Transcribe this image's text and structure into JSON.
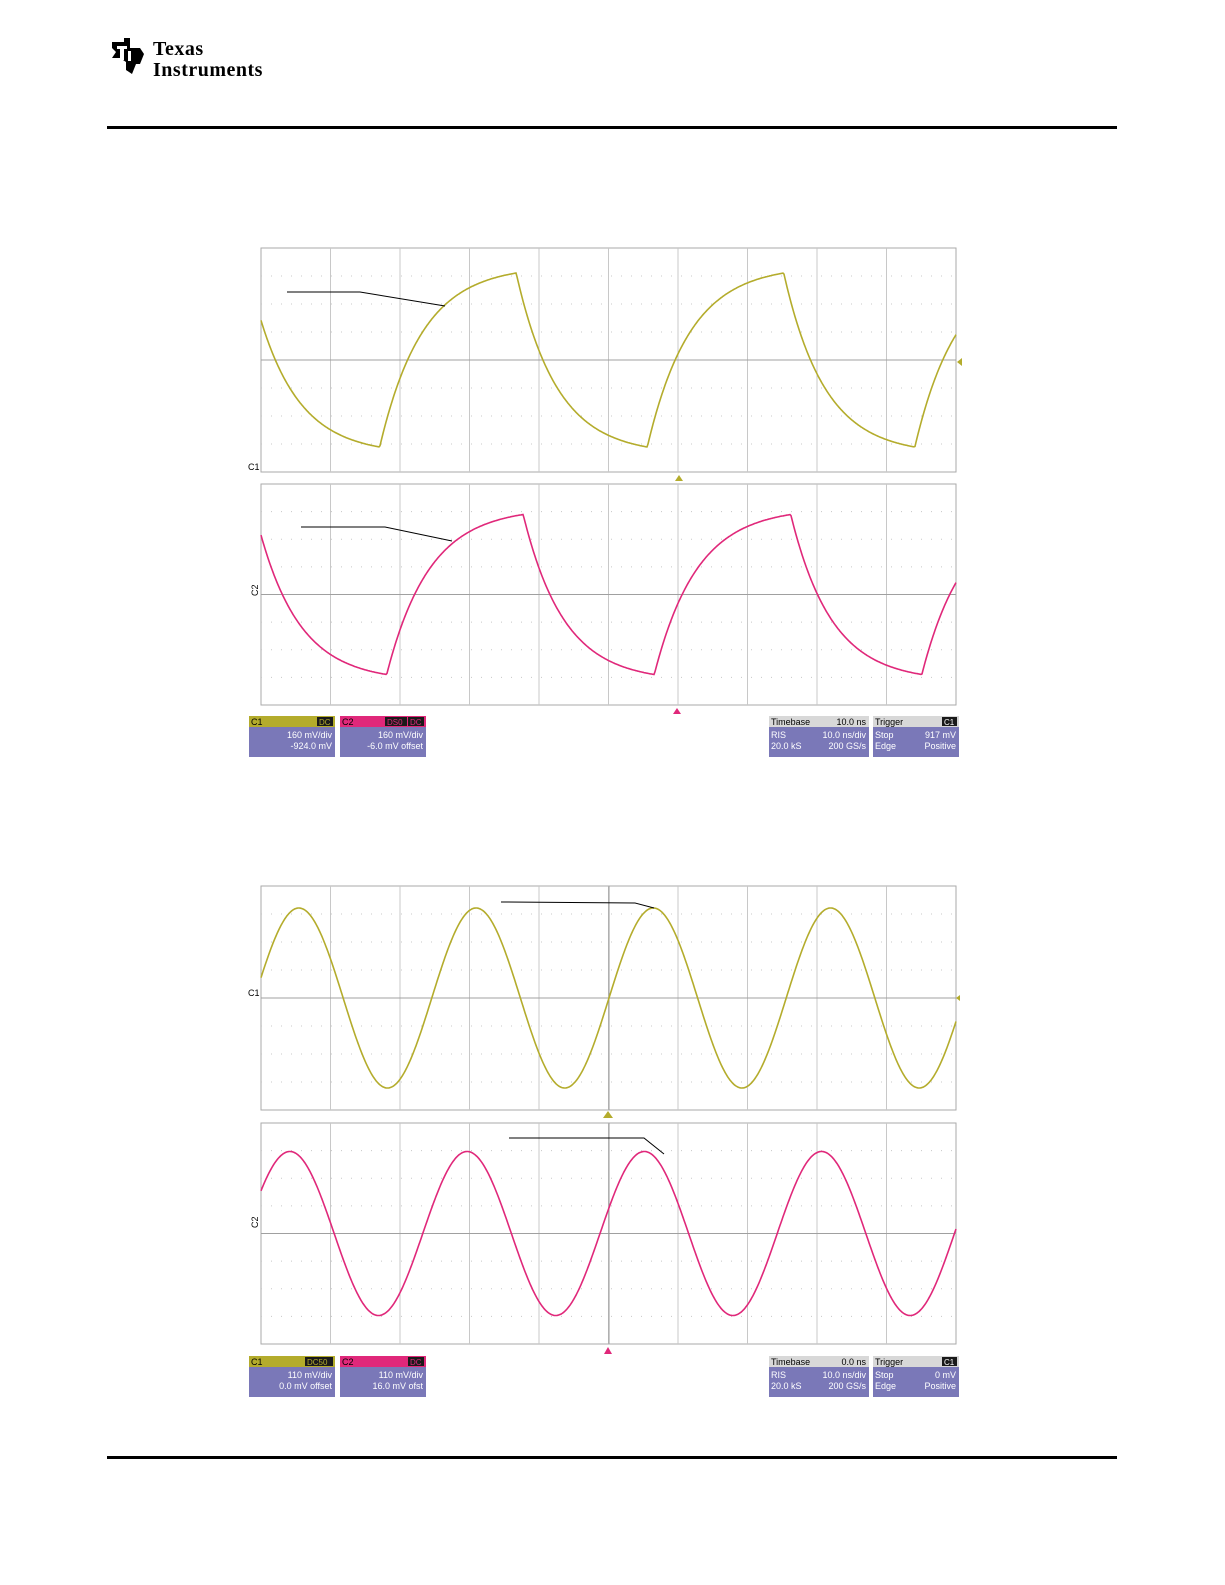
{
  "brand": {
    "line1": "Texas",
    "line2": "Instruments"
  },
  "colors": {
    "ch1": "#b4ac2c",
    "ch2": "#e0287a",
    "panel": "#7a78b8",
    "grid": "#c8c8c8",
    "tag_dark": "#1a1a1a"
  },
  "scopes": [
    {
      "c1_marker": "C1",
      "c2_marker": "C2",
      "ch1_box": {
        "title": "C1",
        "coupling": "DC",
        "line1": "160 mV/div",
        "line2": "-924.0 mV"
      },
      "ch2_box": {
        "title": "C2",
        "coupling_a": "DS0",
        "coupling_b": "DC",
        "line1": "160 mV/div",
        "line2": "-6.0 mV offset"
      },
      "timebase_box": {
        "title": "Timebase",
        "value": "10.0 ns",
        "r1a": "RIS",
        "r1b": "10.0 ns/div",
        "r2a": "20.0 kS",
        "r2b": "200 GS/s"
      },
      "trigger_box": {
        "title": "Trigger",
        "tag": "C1",
        "r1a": "Stop",
        "r1b": "917 mV",
        "r2a": "Edge",
        "r2b": "Positive"
      }
    },
    {
      "c1_marker": "C1",
      "c2_marker": "C2",
      "ch1_box": {
        "title": "C1",
        "coupling": "DC50",
        "line1": "110 mV/div",
        "line2": "0.0 mV offset"
      },
      "ch2_box": {
        "title": "C2",
        "coupling_a": "",
        "coupling_b": "DC",
        "line1": "110 mV/div",
        "line2": "16.0 mV ofst"
      },
      "timebase_box": {
        "title": "Timebase",
        "value": "0.0 ns",
        "r1a": "RIS",
        "r1b": "10.0 ns/div",
        "r2a": "20.0 kS",
        "r2b": "200 GS/s"
      },
      "trigger_box": {
        "title": "Trigger",
        "tag": "C1",
        "r1a": "Stop",
        "r1b": "0 mV",
        "r2a": "Edge",
        "r2b": "Positive"
      }
    }
  ],
  "waveforms": {
    "scope1": {
      "shape": "asymmetric-triangle",
      "time_per_div_ns": 10,
      "divisions": 10,
      "period_div": 3.85
    },
    "scope2": {
      "shape": "sine",
      "time_per_div_ns": 10,
      "divisions": 10,
      "period_div": 2.55
    }
  }
}
